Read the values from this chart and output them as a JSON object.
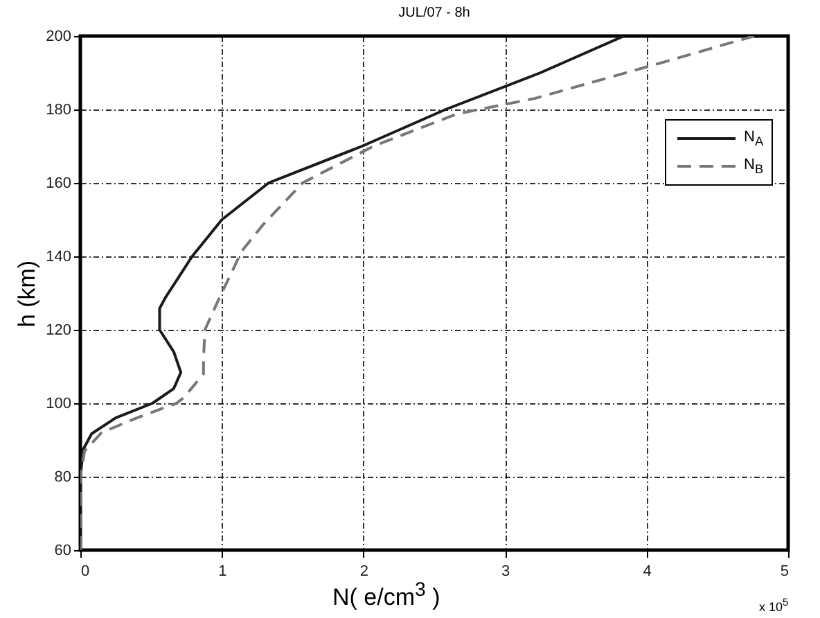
{
  "chart_data": {
    "type": "line",
    "title": "JUL/07 - 8h",
    "xlabel": "N( e/cm$^{3}$ )",
    "ylabel": "h (km)",
    "annotations": [
      "x 10$^{5}$"
    ],
    "xlim": [
      0,
      5
    ],
    "xticks": [
      0,
      1,
      2,
      3,
      4,
      5
    ],
    "ylim": [
      60,
      200
    ],
    "yticks": [
      60,
      80,
      100,
      120,
      140,
      160,
      180,
      200
    ],
    "grid": true,
    "legend": "top right",
    "series": [
      {
        "name": "N$_{A}$",
        "color": "#1a1a1a",
        "line_style": "solid",
        "x": [
          0,
          0,
          0.02,
          0.08,
          0.25,
          0.51,
          0.66,
          0.71,
          0.66,
          0.56,
          0.56,
          0.6,
          0.79,
          1.0,
          1.33,
          1.99,
          2.58,
          3.25,
          3.84
        ],
        "values": [
          60,
          80,
          87.4,
          91.7,
          96,
          100,
          104,
          108.4,
          114,
          120,
          125.8,
          128.7,
          140,
          150,
          160,
          170,
          180,
          190,
          200
        ]
      },
      {
        "name": "N$_{B}$",
        "color": "#777777",
        "line_style": "dashed",
        "x": [
          0,
          0,
          0.03,
          0.15,
          0.4,
          0.68,
          0.73,
          0.87,
          0.87,
          0.88,
          0.98,
          1.14,
          1.29,
          1.57,
          2.07,
          2.66,
          3.21,
          4.13,
          4.76
        ],
        "values": [
          60,
          80,
          87,
          92,
          96,
          100,
          101.5,
          108,
          112,
          120,
          128.5,
          141.4,
          148.6,
          160,
          170,
          178.8,
          183,
          193,
          200
        ]
      }
    ]
  }
}
